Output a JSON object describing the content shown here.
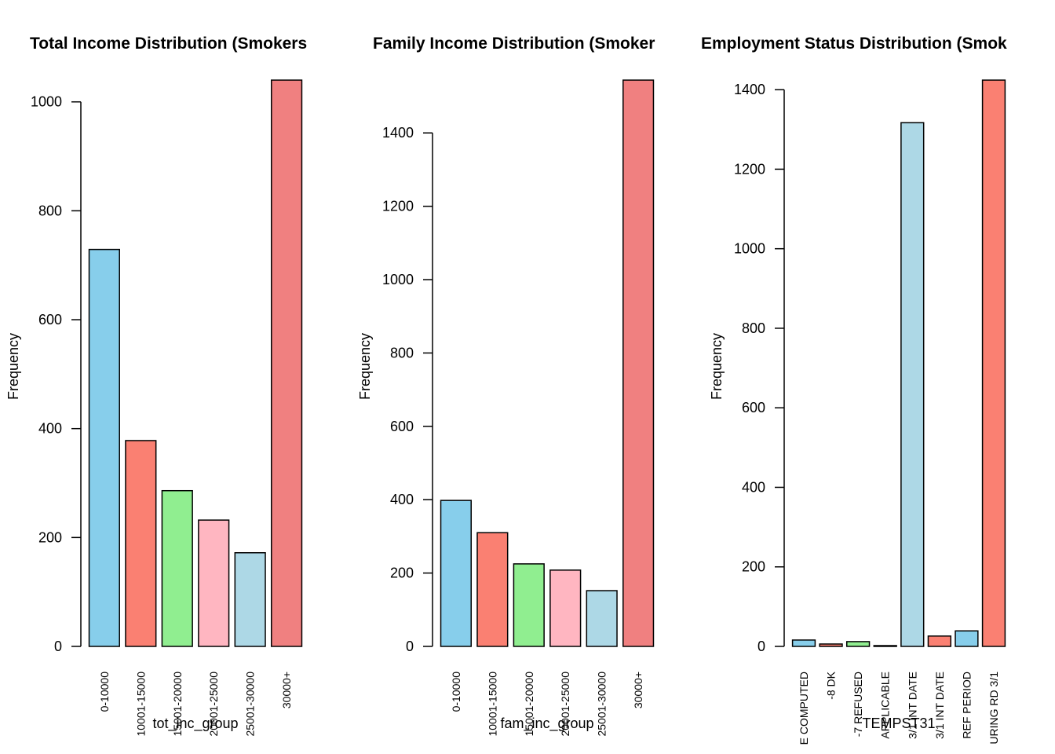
{
  "chart_data": [
    {
      "type": "bar",
      "title": "Total Income Distribution (Smokers",
      "xlabel": "tot_inc_group",
      "ylabel": "Frequency",
      "categories": [
        "0-10000",
        "10001-15000",
        "15001-20000",
        "20001-25000",
        "25001-30000",
        "30000+"
      ],
      "values": [
        729,
        378,
        286,
        232,
        172,
        1040
      ],
      "colors": [
        "#87ceeb",
        "#fa8072",
        "#90ee90",
        "#ffb6c1",
        "#add8e6",
        "#f08080"
      ],
      "ylim": [
        0,
        1040
      ],
      "yticks": [
        0,
        200,
        400,
        600,
        800,
        1000
      ]
    },
    {
      "type": "bar",
      "title": "Family Income Distribution (Smoker",
      "xlabel": "fam_inc_group",
      "ylabel": "Frequency",
      "categories": [
        "0-10000",
        "10001-15000",
        "15001-20000",
        "20001-25000",
        "25001-30000",
        "30000+"
      ],
      "values": [
        398,
        310,
        225,
        208,
        152,
        1544
      ],
      "colors": [
        "#87ceeb",
        "#fa8072",
        "#90ee90",
        "#ffb6c1",
        "#add8e6",
        "#f08080"
      ],
      "ylim": [
        0,
        1544
      ],
      "yticks": [
        0,
        200,
        400,
        600,
        800,
        1000,
        1200,
        1400
      ]
    },
    {
      "type": "bar",
      "title": "Employment Status Distribution (Smok",
      "xlabel": "TEMPST31",
      "ylabel": "Frequency",
      "categories": [
        "E COMPUTED",
        "-8 DK",
        "-7 REFUSED",
        "APPLICABLE",
        "3/1 INT DATE",
        "3/1 INT DATE",
        "REF PERIOD",
        "URING RD 3/1"
      ],
      "values": [
        16,
        6,
        12,
        2,
        1317,
        26,
        39,
        1424
      ],
      "colors": [
        "#87ceeb",
        "#fa8072",
        "#90ee90",
        "#ffb6c1",
        "#add8e6",
        "#fa8072",
        "#87ceeb",
        "#fa8072"
      ],
      "ylim": [
        0,
        1424
      ],
      "yticks": [
        0,
        200,
        400,
        600,
        800,
        1000,
        1200,
        1400
      ]
    }
  ]
}
